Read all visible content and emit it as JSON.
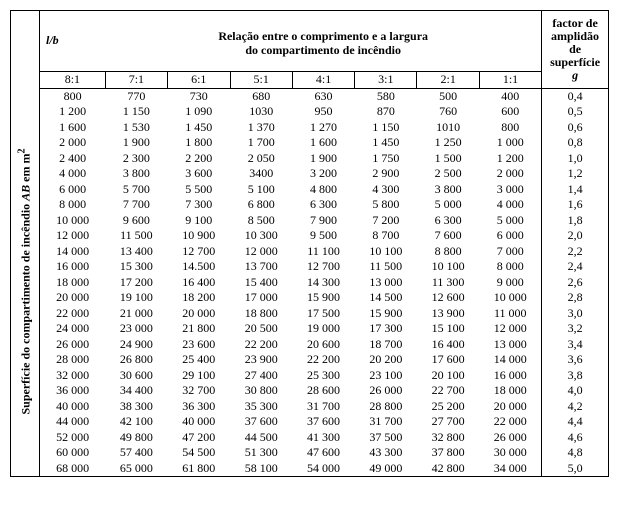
{
  "side_label_html": "Superfície do compartimento de incêndio <span style=\"font-style:italic;font-weight:bold\">AB</span> em m<sup>2</sup>",
  "header": {
    "lb_html": "<i>l/b</i>",
    "relacao_line1": "Relação entre o comprimento e a largura",
    "relacao_line2": "do compartimento de incêndio",
    "factor_line1": "factor de",
    "factor_line2": "amplidão",
    "factor_line3": "de",
    "factor_line4": "superfície",
    "factor_line5_html": "<i>g</i>"
  },
  "ratios": [
    "8:1",
    "7:1",
    "6:1",
    "5:1",
    "4:1",
    "3:1",
    "2:1",
    "1:1"
  ],
  "rows": [
    {
      "v": [
        "800",
        "770",
        "730",
        "680",
        "630",
        "580",
        "500",
        "400"
      ],
      "g": "0,4"
    },
    {
      "v": [
        "1 200",
        "1 150",
        "1 090",
        "1030",
        "950",
        "870",
        "760",
        "600"
      ],
      "g": "0,5"
    },
    {
      "v": [
        "1 600",
        "1 530",
        "1 450",
        "1 370",
        "1 270",
        "1 150",
        "1010",
        "800"
      ],
      "g": "0,6"
    },
    {
      "v": [
        "2 000",
        "1 900",
        "1 800",
        "1 700",
        "1 600",
        "1 450",
        "1 250",
        "1 000"
      ],
      "g": "0,8"
    },
    {
      "v": [
        "2 400",
        "2 300",
        "2 200",
        "2 050",
        "1 900",
        "1 750",
        "1 500",
        "1 200"
      ],
      "g": "1,0"
    },
    {
      "v": [
        "4 000",
        "3 800",
        "3 600",
        "3400",
        "3 200",
        "2 900",
        "2 500",
        "2 000"
      ],
      "g": "1,2"
    },
    {
      "v": [
        "6 000",
        "5 700",
        "5 500",
        "5 100",
        "4 800",
        "4 300",
        "3 800",
        "3 000"
      ],
      "g": "1,4"
    },
    {
      "v": [
        "8 000",
        "7 700",
        "7 300",
        "6 800",
        "6 300",
        "5 800",
        "5 000",
        "4 000"
      ],
      "g": "1,6"
    },
    {
      "v": [
        "10 000",
        "9 600",
        "9 100",
        "8 500",
        "7 900",
        "7 200",
        "6 300",
        "5 000"
      ],
      "g": "1,8"
    },
    {
      "v": [
        "12 000",
        "11 500",
        "10 900",
        "10 300",
        "9 500",
        "8 700",
        "7 600",
        "6 000"
      ],
      "g": "2,0"
    },
    {
      "v": [
        "14 000",
        "13 400",
        "12 700",
        "12 000",
        "11 100",
        "10 100",
        "8 800",
        "7 000"
      ],
      "g": "2,2"
    },
    {
      "v": [
        "16 000",
        "15 300",
        "14.500",
        "13 700",
        "12 700",
        "11 500",
        "10 100",
        "8 000"
      ],
      "g": "2,4"
    },
    {
      "v": [
        "18 000",
        "17 200",
        "16 400",
        "15 400",
        "14 300",
        "13 000",
        "11 300",
        "9 000"
      ],
      "g": "2,6"
    },
    {
      "v": [
        "20 000",
        "19 100",
        "18 200",
        "17 000",
        "15 900",
        "14 500",
        "12 600",
        "10 000"
      ],
      "g": "2,8"
    },
    {
      "v": [
        "22 000",
        "21 000",
        "20 000",
        "18 800",
        "17 500",
        "15 900",
        "13 900",
        "11 000"
      ],
      "g": "3,0"
    },
    {
      "v": [
        "24 000",
        "23 000",
        "21 800",
        "20 500",
        "19 000",
        "17 300",
        "15 100",
        "12 000"
      ],
      "g": "3,2"
    },
    {
      "v": [
        "26 000",
        "24 900",
        "23 600",
        "22 200",
        "20 600",
        "18 700",
        "16 400",
        "13 000"
      ],
      "g": "3,4"
    },
    {
      "v": [
        "28 000",
        "26 800",
        "25 400",
        "23 900",
        "22 200",
        "20 200",
        "17 600",
        "14 000"
      ],
      "g": "3,6"
    },
    {
      "v": [
        "32 000",
        "30 600",
        "29 100",
        "27 400",
        "25 300",
        "23 100",
        "20 100",
        "16 000"
      ],
      "g": "3,8"
    },
    {
      "v": [
        "36 000",
        "34 400",
        "32 700",
        "30 800",
        "28 600",
        "26 000",
        "22 700",
        "18 000"
      ],
      "g": "4,0"
    },
    {
      "v": [
        "40 000",
        "38 300",
        "36 300",
        "35 300",
        "31 700",
        "28 800",
        "25 200",
        "20 000"
      ],
      "g": "4,2"
    },
    {
      "v": [
        "44 000",
        "42 100",
        "40 000",
        "37 600",
        "37 600",
        "31 700",
        "27 700",
        "22 000"
      ],
      "g": "4,4"
    },
    {
      "v": [
        "52 000",
        "49 800",
        "47 200",
        "44 500",
        "41 300",
        "37 500",
        "32 800",
        "26 000"
      ],
      "g": "4,6"
    },
    {
      "v": [
        "60 000",
        "57 400",
        "54 500",
        "51 300",
        "47 600",
        "43 300",
        "37 800",
        "30 000"
      ],
      "g": "4,8"
    },
    {
      "v": [
        "68 000",
        "65 000",
        "61 800",
        "58 100",
        "54 000",
        "49 000",
        "42 800",
        "34 000"
      ],
      "g": "5,0"
    }
  ]
}
